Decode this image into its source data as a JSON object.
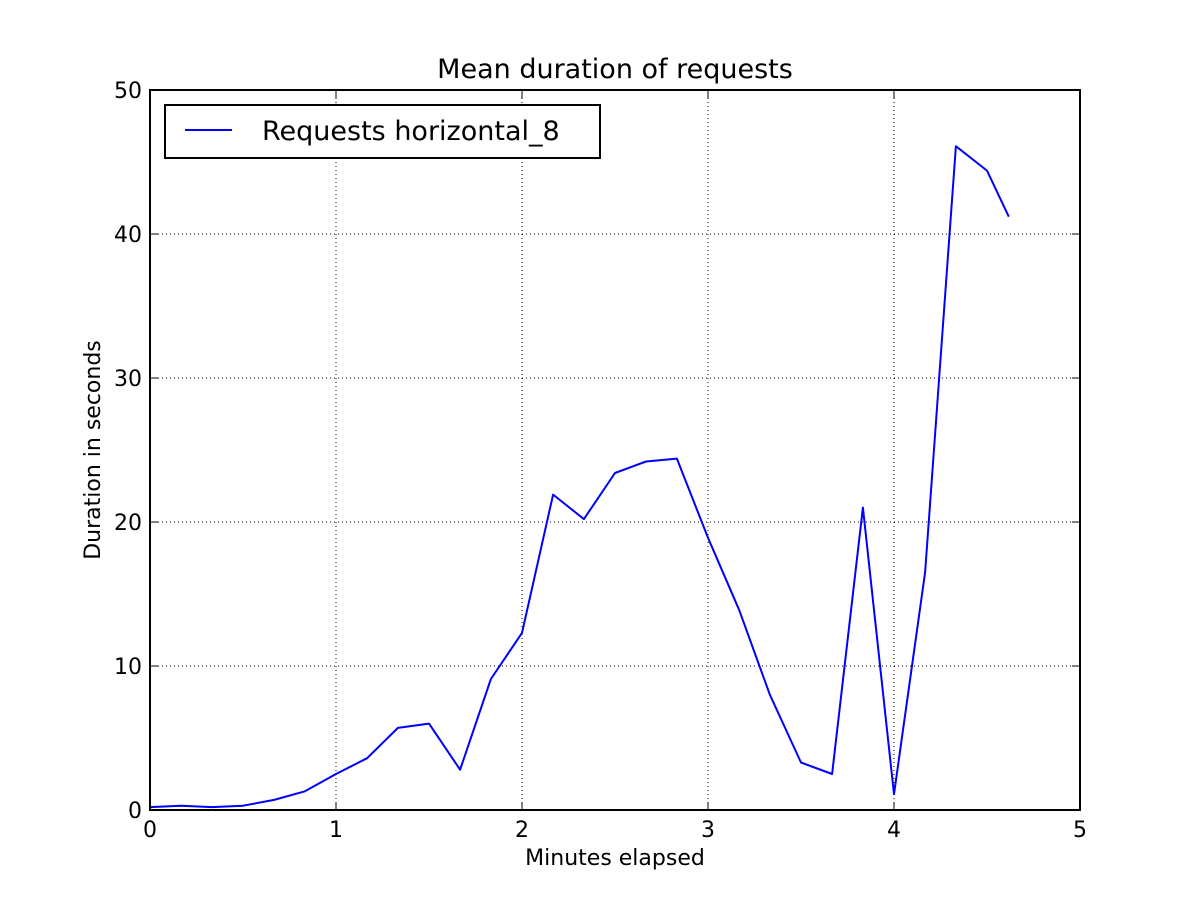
{
  "chart_data": {
    "type": "line",
    "title": "Mean duration of requests",
    "xlabel": "Minutes elapsed",
    "ylabel": "Duration in seconds",
    "xlim": [
      0,
      5
    ],
    "ylim": [
      0,
      50
    ],
    "xticks": [
      0,
      1,
      2,
      3,
      4,
      5
    ],
    "yticks": [
      0,
      10,
      20,
      30,
      40,
      50
    ],
    "xtick_labels": [
      "0",
      "1",
      "2",
      "3",
      "4",
      "5"
    ],
    "ytick_labels": [
      "0",
      "10",
      "20",
      "30",
      "40",
      "50"
    ],
    "grid": true,
    "legend_position": "upper-left",
    "series": [
      {
        "name": "Requests horizontal_8",
        "color": "#0000ff",
        "x": [
          0,
          0.167,
          0.333,
          0.5,
          0.667,
          0.833,
          1.0,
          1.167,
          1.333,
          1.5,
          1.667,
          1.833,
          2.0,
          2.167,
          2.333,
          2.5,
          2.667,
          2.833,
          3.0,
          3.167,
          3.333,
          3.5,
          3.667,
          3.833,
          4.0,
          4.167,
          4.333,
          4.5,
          4.617
        ],
        "y": [
          0.2,
          0.3,
          0.2,
          0.3,
          0.7,
          1.3,
          2.5,
          3.6,
          5.7,
          6.0,
          2.8,
          9.1,
          12.3,
          21.9,
          20.2,
          23.4,
          24.2,
          24.4,
          18.9,
          13.9,
          8.0,
          3.3,
          2.5,
          21.0,
          1.1,
          16.5,
          46.1,
          44.4,
          41.2
        ]
      }
    ]
  }
}
